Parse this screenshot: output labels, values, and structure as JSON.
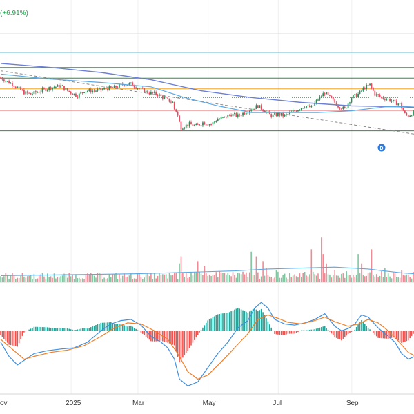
{
  "header": {
    "change_text": "(+6.91%)"
  },
  "colors": {
    "up": "#2e8b57",
    "down": "#e84a5f",
    "up_vol": "#7fc7a0",
    "down_vol": "#f08b95",
    "ma_fast": "#5aa9e6",
    "ma_slow": "#6c7fd6",
    "trend": "#888888",
    "hline_gray": "#7a7a7a",
    "hline_cyan": "#63b8d6",
    "hline_green": "#2f8f3a",
    "hline_orange": "#f5a623",
    "hline_red": "#e02d2d",
    "hline_green_dotted": "#2f8f3a",
    "macd": "#3d8fe0",
    "signal": "#f07e26",
    "hist_up": "#26a69a",
    "hist_down": "#ef5350",
    "dividend_badge": "#2d7be0"
  },
  "x_axis": {
    "labels": [
      {
        "text": "ov",
        "index": 0
      },
      {
        "text": "2025",
        "index": 43
      },
      {
        "text": "Mar",
        "index": 83
      },
      {
        "text": "May",
        "index": 125
      },
      {
        "text": "Jul",
        "index": 167
      },
      {
        "text": "Sep",
        "index": 211
      }
    ]
  },
  "annotations": {
    "dividend_marker": {
      "text": "D",
      "index": 228
    }
  },
  "chart_data": {
    "type": "candlestick",
    "x_range": [
      0,
      248
    ],
    "price": {
      "ylim": [
        0.6,
        1.22
      ],
      "horizontal_lines": [
        {
          "value": 1.18,
          "color_key": "hline_gray",
          "style": "solid"
        },
        {
          "value": 1.125,
          "color_key": "hline_cyan",
          "style": "solid"
        },
        {
          "value": 1.08,
          "color_key": "hline_green",
          "style": "solid"
        },
        {
          "value": 1.048,
          "color_key": "hline_green",
          "style": "solid"
        },
        {
          "value": 1.016,
          "color_key": "hline_orange",
          "style": "solid"
        },
        {
          "value": 0.99,
          "color_key": "hline_green_dotted",
          "style": "dotted"
        },
        {
          "value": 0.952,
          "color_key": "hline_red",
          "style": "solid"
        },
        {
          "value": 0.89,
          "color_key": "hline_green",
          "style": "solid"
        }
      ],
      "anchors": [
        [
          0,
          1.05
        ],
        [
          3,
          1.04
        ],
        [
          7,
          1.03
        ],
        [
          10,
          1.02
        ],
        [
          14,
          1.005
        ],
        [
          18,
          1.0
        ],
        [
          24,
          1.01
        ],
        [
          30,
          1.02
        ],
        [
          36,
          1.025
        ],
        [
          40,
          1.01
        ],
        [
          46,
          0.995
        ],
        [
          50,
          1.01
        ],
        [
          56,
          1.01
        ],
        [
          62,
          1.015
        ],
        [
          68,
          1.02
        ],
        [
          74,
          1.03
        ],
        [
          78,
          1.03
        ],
        [
          82,
          1.02
        ],
        [
          88,
          1.005
        ],
        [
          94,
          1.0
        ],
        [
          99,
          0.985
        ],
        [
          103,
          0.975
        ],
        [
          104,
          0.955
        ],
        [
          105,
          0.95
        ],
        [
          106,
          0.935
        ],
        [
          107,
          0.915
        ],
        [
          108,
          0.9
        ],
        [
          110,
          0.905
        ],
        [
          113,
          0.91
        ],
        [
          117,
          0.905
        ],
        [
          121,
          0.915
        ],
        [
          126,
          0.91
        ],
        [
          130,
          0.925
        ],
        [
          134,
          0.93
        ],
        [
          138,
          0.94
        ],
        [
          142,
          0.935
        ],
        [
          146,
          0.945
        ],
        [
          150,
          0.955
        ],
        [
          154,
          0.965
        ],
        [
          158,
          0.95
        ],
        [
          162,
          0.935
        ],
        [
          166,
          0.94
        ],
        [
          170,
          0.935
        ],
        [
          174,
          0.945
        ],
        [
          178,
          0.955
        ],
        [
          182,
          0.965
        ],
        [
          186,
          0.96
        ],
        [
          190,
          0.985
        ],
        [
          194,
          1.005
        ],
        [
          198,
          0.985
        ],
        [
          202,
          0.965
        ],
        [
          206,
          0.955
        ],
        [
          210,
          0.99
        ],
        [
          214,
          1.0
        ],
        [
          218,
          1.02
        ],
        [
          221,
          1.028
        ],
        [
          224,
          1.0
        ],
        [
          228,
          0.99
        ],
        [
          232,
          0.985
        ],
        [
          236,
          0.975
        ],
        [
          239,
          0.97
        ],
        [
          240,
          0.96
        ],
        [
          242,
          0.94
        ],
        [
          244,
          0.935
        ],
        [
          247,
          0.945
        ]
      ],
      "ma_slow": [
        [
          0,
          1.092
        ],
        [
          30,
          1.08
        ],
        [
          60,
          1.065
        ],
        [
          90,
          1.043
        ],
        [
          120,
          1.01
        ],
        [
          150,
          0.99
        ],
        [
          180,
          0.975
        ],
        [
          210,
          0.965
        ],
        [
          240,
          0.962
        ],
        [
          248,
          0.96
        ]
      ],
      "ma_fast": [
        [
          0,
          1.06
        ],
        [
          30,
          1.045
        ],
        [
          60,
          1.035
        ],
        [
          90,
          1.022
        ],
        [
          110,
          0.99
        ],
        [
          130,
          0.965
        ],
        [
          150,
          0.945
        ],
        [
          170,
          0.945
        ],
        [
          190,
          0.945
        ],
        [
          210,
          0.95
        ],
        [
          230,
          0.962
        ],
        [
          248,
          0.964
        ]
      ],
      "trend_line": [
        [
          0,
          1.07
        ],
        [
          248,
          0.88
        ]
      ]
    },
    "volume": {
      "ylim": [
        0,
        160
      ],
      "base_level": 12,
      "spikes": [
        {
          "index": 107,
          "value": 40
        },
        {
          "index": 108,
          "value": 55
        },
        {
          "index": 118,
          "value": 45
        },
        {
          "index": 122,
          "value": 35
        },
        {
          "index": 150,
          "value": 65
        },
        {
          "index": 153,
          "value": 55
        },
        {
          "index": 157,
          "value": 45
        },
        {
          "index": 159,
          "value": 30
        },
        {
          "index": 186,
          "value": 70
        },
        {
          "index": 192,
          "value": 95
        },
        {
          "index": 193,
          "value": 60
        },
        {
          "index": 195,
          "value": 40
        },
        {
          "index": 214,
          "value": 60
        },
        {
          "index": 216,
          "value": 40
        },
        {
          "index": 222,
          "value": 70
        },
        {
          "index": 230,
          "value": 30
        },
        {
          "index": 240,
          "value": 25
        }
      ],
      "avg": [
        [
          0,
          14
        ],
        [
          40,
          16
        ],
        [
          80,
          18
        ],
        [
          100,
          20
        ],
        [
          120,
          22
        ],
        [
          140,
          24
        ],
        [
          160,
          28
        ],
        [
          180,
          30
        ],
        [
          200,
          32
        ],
        [
          220,
          28
        ],
        [
          240,
          20
        ],
        [
          248,
          18
        ]
      ]
    },
    "macd": {
      "ylim": [
        -0.11,
        0.06
      ],
      "macd": [
        [
          0,
          -0.02
        ],
        [
          5,
          -0.045
        ],
        [
          10,
          -0.06
        ],
        [
          15,
          -0.05
        ],
        [
          20,
          -0.04
        ],
        [
          28,
          -0.035
        ],
        [
          36,
          -0.032
        ],
        [
          44,
          -0.03
        ],
        [
          52,
          -0.02
        ],
        [
          60,
          0.0
        ],
        [
          66,
          0.012
        ],
        [
          72,
          0.018
        ],
        [
          78,
          0.02
        ],
        [
          84,
          0.01
        ],
        [
          90,
          -0.01
        ],
        [
          96,
          -0.02
        ],
        [
          100,
          -0.03
        ],
        [
          104,
          -0.05
        ],
        [
          107,
          -0.085
        ],
        [
          112,
          -0.097
        ],
        [
          118,
          -0.09
        ],
        [
          124,
          -0.065
        ],
        [
          130,
          -0.04
        ],
        [
          136,
          -0.02
        ],
        [
          142,
          0.005
        ],
        [
          148,
          0.018
        ],
        [
          152,
          0.04
        ],
        [
          156,
          0.05
        ],
        [
          160,
          0.04
        ],
        [
          164,
          0.02
        ],
        [
          170,
          0.012
        ],
        [
          176,
          0.01
        ],
        [
          182,
          0.014
        ],
        [
          188,
          0.02
        ],
        [
          194,
          0.03
        ],
        [
          200,
          0.008
        ],
        [
          204,
          0.0
        ],
        [
          208,
          0.004
        ],
        [
          212,
          0.012
        ],
        [
          216,
          0.028
        ],
        [
          220,
          0.024
        ],
        [
          226,
          0.005
        ],
        [
          232,
          -0.01
        ],
        [
          236,
          -0.02
        ],
        [
          240,
          -0.04
        ],
        [
          244,
          -0.05
        ],
        [
          248,
          -0.045
        ]
      ],
      "signal": [
        [
          0,
          -0.015
        ],
        [
          8,
          -0.035
        ],
        [
          14,
          -0.05
        ],
        [
          20,
          -0.045
        ],
        [
          30,
          -0.038
        ],
        [
          40,
          -0.034
        ],
        [
          50,
          -0.026
        ],
        [
          60,
          -0.01
        ],
        [
          68,
          0.005
        ],
        [
          76,
          0.014
        ],
        [
          84,
          0.012
        ],
        [
          92,
          0.0
        ],
        [
          100,
          -0.015
        ],
        [
          106,
          -0.04
        ],
        [
          112,
          -0.072
        ],
        [
          118,
          -0.085
        ],
        [
          124,
          -0.078
        ],
        [
          132,
          -0.055
        ],
        [
          140,
          -0.03
        ],
        [
          148,
          -0.005
        ],
        [
          154,
          0.02
        ],
        [
          160,
          0.028
        ],
        [
          166,
          0.022
        ],
        [
          172,
          0.015
        ],
        [
          180,
          0.012
        ],
        [
          188,
          0.018
        ],
        [
          194,
          0.024
        ],
        [
          200,
          0.016
        ],
        [
          208,
          0.008
        ],
        [
          214,
          0.012
        ],
        [
          220,
          0.02
        ],
        [
          226,
          0.014
        ],
        [
          232,
          0.0
        ],
        [
          238,
          -0.018
        ],
        [
          244,
          -0.038
        ],
        [
          248,
          -0.044
        ]
      ]
    }
  }
}
